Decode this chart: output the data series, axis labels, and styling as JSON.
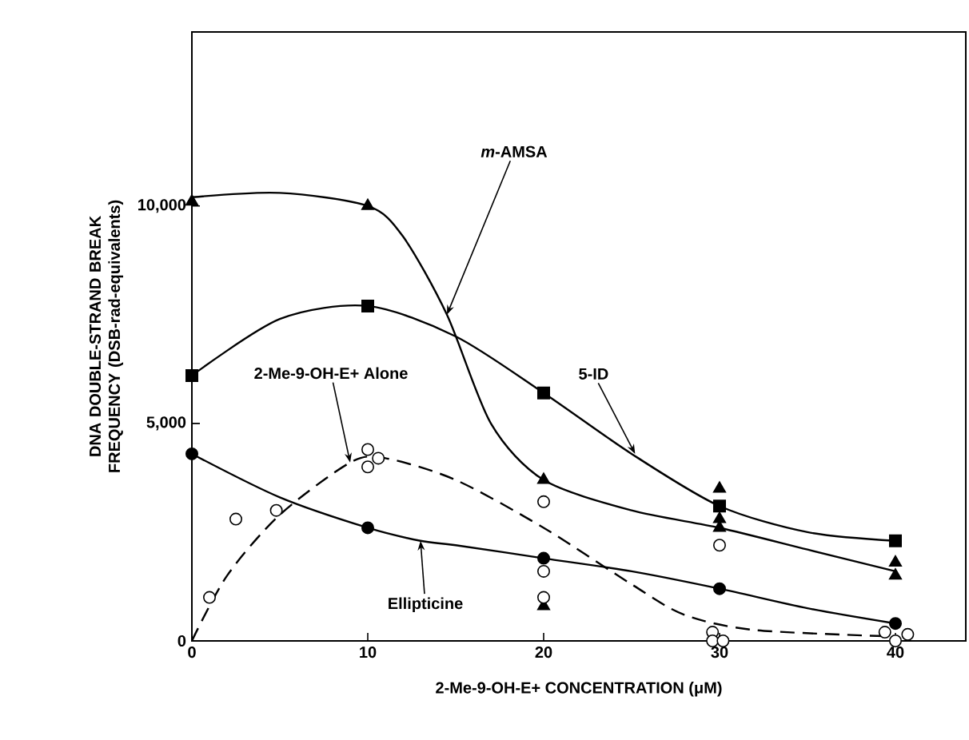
{
  "chart_data": {
    "type": "scatter",
    "xlabel": "2-Me-9-OH-E+ CONCENTRATION (μM)",
    "ylabel": "DNA DOUBLE-STRAND BREAK FREQUENCY (DSB-rad-equivalents)",
    "xlim": [
      0,
      44
    ],
    "ylim": [
      0,
      14000
    ],
    "xticks": [
      0,
      10,
      20,
      30,
      40
    ],
    "yticks": [
      0,
      {
        "value": 5000,
        "label": "5,000"
      },
      {
        "value": 10000,
        "label": "10,000"
      }
    ],
    "series": [
      {
        "type": "line",
        "color": "#000000",
        "marker": "none",
        "line_style": "solid",
        "x": [
          0,
          5,
          10,
          12,
          14.5,
          17,
          20,
          25,
          30,
          35,
          40
        ],
        "values": [
          10200,
          10300,
          10000,
          9300,
          7500,
          5000,
          3700,
          3000,
          2600,
          2100,
          1600
        ]
      },
      {
        "color": "#000000",
        "marker": "triangle",
        "x": [
          0,
          10,
          20,
          20,
          30,
          30,
          30,
          40,
          40
        ],
        "values": [
          10100,
          10000,
          3700,
          800,
          3500,
          2800,
          2600,
          1800,
          1500
        ]
      },
      {
        "type": "line",
        "color": "#000000",
        "marker": "none",
        "line_style": "solid",
        "x": [
          0,
          5,
          10,
          15,
          20,
          25,
          30,
          35,
          40
        ],
        "values": [
          6100,
          7400,
          7700,
          7000,
          5700,
          4300,
          3100,
          2500,
          2300
        ]
      },
      {
        "color": "#000000",
        "marker": "square",
        "x": [
          0,
          10,
          20,
          30,
          40
        ],
        "values": [
          6100,
          7700,
          5700,
          3100,
          2300
        ]
      },
      {
        "type": "line",
        "color": "#000000",
        "marker": "none",
        "line_style": "solid",
        "x": [
          0,
          5,
          10,
          13,
          15,
          20,
          25,
          30,
          35,
          40
        ],
        "values": [
          4300,
          3300,
          2600,
          2300,
          2200,
          1900,
          1600,
          1200,
          750,
          400
        ]
      },
      {
        "color": "#000000",
        "marker": "circle",
        "x": [
          0,
          10,
          20,
          30,
          40
        ],
        "values": [
          4300,
          2600,
          1900,
          1200,
          400
        ]
      },
      {
        "type": "line",
        "color": "#000000",
        "marker": "none",
        "line_style": "dashed",
        "x": [
          0,
          2,
          5,
          9,
          11,
          15,
          20,
          25,
          28,
          32,
          40
        ],
        "values": [
          0,
          1500,
          2900,
          4100,
          4200,
          3700,
          2600,
          1300,
          600,
          250,
          100
        ]
      },
      {
        "color": "#ffffff",
        "marker": "circle",
        "x": [
          1,
          2.5,
          4.8,
          10,
          10,
          10.6,
          20,
          20,
          20,
          30,
          29.6,
          29.6,
          30.2,
          39.4,
          40,
          40.7
        ],
        "values": [
          1000,
          2800,
          3000,
          4400,
          4000,
          4200,
          3200,
          1600,
          1000,
          2200,
          200,
          0,
          0,
          200,
          0,
          150
        ]
      }
    ],
    "annotations": [
      {
        "text": "*m*-AMSA",
        "x": 14.5,
        "y": 7500
      },
      {
        "text": "5-ID",
        "x": 25.2,
        "y": 4300
      },
      {
        "text": "2-Me-9-OH-E+ Alone",
        "x": 9,
        "y": 4100
      },
      {
        "text": "Ellipticine",
        "x": 13,
        "y": 2300
      }
    ]
  }
}
